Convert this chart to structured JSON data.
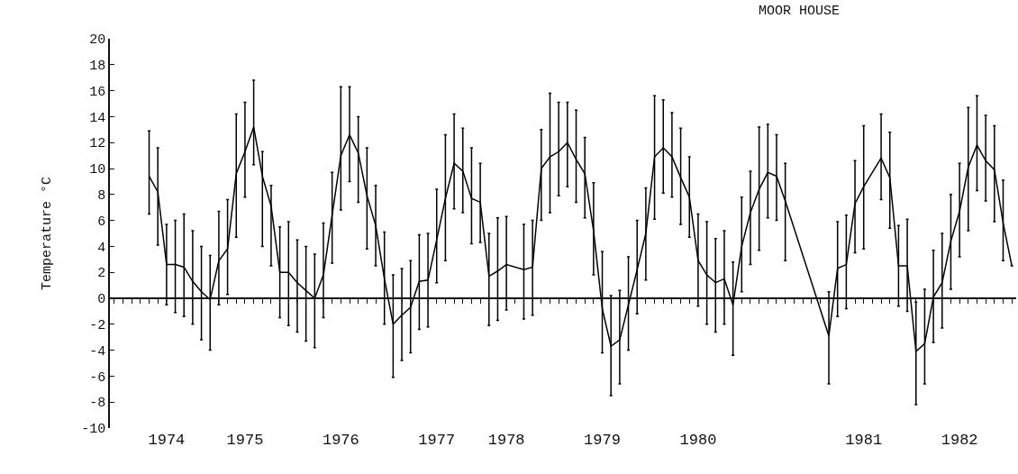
{
  "chart_data": {
    "type": "line",
    "title": "MOOR HOUSE",
    "ylabel": "Temperature °C",
    "color": "#000000",
    "line_style": "solid",
    "categories": [
      null,
      null,
      null,
      null,
      null,
      null,
      "1974",
      null,
      null,
      null,
      null,
      null,
      null,
      null,
      null,
      "1975",
      null,
      null,
      null,
      null,
      null,
      null,
      null,
      null,
      null,
      null,
      "1976",
      null,
      null,
      null,
      null,
      null,
      null,
      null,
      null,
      null,
      null,
      "1977",
      null,
      null,
      null,
      null,
      null,
      null,
      null,
      "1978",
      null,
      null,
      null,
      null,
      null,
      null,
      null,
      null,
      null,
      null,
      "1979",
      null,
      null,
      null,
      null,
      null,
      null,
      null,
      null,
      null,
      null,
      "1980",
      null,
      null,
      null,
      null,
      null,
      null,
      null,
      null,
      null,
      null,
      null,
      null,
      null,
      null,
      null,
      null,
      null,
      null,
      "1981",
      null,
      null,
      null,
      null,
      null,
      null,
      null,
      null,
      null,
      null,
      "1982",
      null,
      null,
      null,
      null,
      null,
      null
    ],
    "values": [
      null,
      null,
      null,
      null,
      9.4,
      8.2,
      2.6,
      2.6,
      2.4,
      1.3,
      0.5,
      -0.1,
      2.9,
      3.8,
      9.6,
      11.3,
      13.2,
      9.4,
      7.1,
      2.0,
      2.0,
      1.2,
      0.6,
      0.0,
      1.8,
      6.4,
      11.0,
      12.6,
      11.2,
      7.9,
      5.6,
      1.5,
      -2.0,
      -1.3,
      -0.7,
      1.3,
      1.4,
      4.5,
      7.7,
      10.4,
      9.8,
      7.7,
      7.4,
      1.7,
      2.1,
      2.6,
      null,
      2.2,
      2.4,
      10.0,
      10.9,
      11.3,
      12.0,
      10.7,
      9.6,
      5.2,
      -0.8,
      -3.7,
      -3.2,
      -0.5,
      2.2,
      5.0,
      10.9,
      11.6,
      10.9,
      9.3,
      7.8,
      2.9,
      1.8,
      1.2,
      1.5,
      -0.5,
      4.0,
      6.6,
      8.4,
      9.7,
      9.4,
      7.5,
      null,
      null,
      null,
      null,
      -2.9,
      2.3,
      2.6,
      7.3,
      8.6,
      null,
      10.8,
      9.3,
      2.5,
      2.5,
      -4.1,
      -3.5,
      0.1,
      1.2,
      4.4,
      6.7,
      10.1,
      11.8,
      10.6,
      9.9,
      5.8,
      2.5
    ],
    "errors": [
      null,
      null,
      null,
      null,
      [
        6.5,
        12.9
      ],
      [
        4.1,
        11.6
      ],
      [
        -0.5,
        5.7
      ],
      [
        -1.1,
        6.0
      ],
      [
        -1.4,
        6.5
      ],
      [
        -2.0,
        5.2
      ],
      [
        -3.2,
        4.0
      ],
      [
        -4.0,
        3.3
      ],
      [
        -0.5,
        6.7
      ],
      [
        0.3,
        7.6
      ],
      [
        4.7,
        14.2
      ],
      [
        7.8,
        15.1
      ],
      [
        10.3,
        16.8
      ],
      [
        4.0,
        11.3
      ],
      [
        2.5,
        8.7
      ],
      [
        -1.5,
        5.5
      ],
      [
        -2.1,
        5.9
      ],
      [
        -2.6,
        4.5
      ],
      [
        -3.3,
        4.0
      ],
      [
        -3.8,
        3.4
      ],
      [
        -1.5,
        5.8
      ],
      [
        2.7,
        9.7
      ],
      [
        6.8,
        16.3
      ],
      [
        9.0,
        16.3
      ],
      [
        7.4,
        14.0
      ],
      [
        3.8,
        11.6
      ],
      [
        2.5,
        8.7
      ],
      [
        -2.0,
        5.1
      ],
      [
        -6.1,
        1.8
      ],
      [
        -4.8,
        2.3
      ],
      [
        -4.2,
        2.9
      ],
      [
        -2.4,
        4.9
      ],
      [
        -2.2,
        5.0
      ],
      [
        1.2,
        8.4
      ],
      [
        2.9,
        12.6
      ],
      [
        6.9,
        14.2
      ],
      [
        6.6,
        13.1
      ],
      [
        4.2,
        11.6
      ],
      [
        4.3,
        10.4
      ],
      [
        -2.1,
        5.0
      ],
      [
        -1.7,
        6.2
      ],
      [
        -0.9,
        6.3
      ],
      null,
      [
        -1.6,
        5.7
      ],
      [
        -1.3,
        6.0
      ],
      [
        6.0,
        13.0
      ],
      [
        6.6,
        15.8
      ],
      [
        7.9,
        15.1
      ],
      [
        8.6,
        15.1
      ],
      [
        7.4,
        14.5
      ],
      [
        6.2,
        12.4
      ],
      [
        1.8,
        8.9
      ],
      [
        -4.2,
        3.6
      ],
      [
        -7.5,
        0.2
      ],
      [
        -6.6,
        0.6
      ],
      [
        -4.0,
        3.2
      ],
      [
        -1.2,
        6.0
      ],
      [
        1.4,
        8.5
      ],
      [
        6.1,
        15.6
      ],
      [
        8.1,
        15.3
      ],
      [
        7.8,
        14.3
      ],
      [
        5.7,
        13.1
      ],
      [
        4.7,
        10.9
      ],
      [
        -0.6,
        6.5
      ],
      [
        -2.0,
        5.9
      ],
      [
        -2.6,
        4.6
      ],
      [
        -2.0,
        5.2
      ],
      [
        -4.4,
        2.8
      ],
      [
        0.5,
        7.8
      ],
      [
        2.6,
        9.8
      ],
      [
        3.7,
        13.2
      ],
      [
        6.2,
        13.4
      ],
      [
        6.0,
        12.6
      ],
      [
        2.9,
        10.4
      ],
      null,
      null,
      null,
      null,
      [
        -6.6,
        0.5
      ],
      [
        -1.4,
        5.9
      ],
      [
        -0.8,
        6.4
      ],
      [
        3.5,
        10.6
      ],
      [
        3.8,
        13.3
      ],
      null,
      [
        7.6,
        14.2
      ],
      [
        5.4,
        12.8
      ],
      [
        -0.6,
        5.6
      ],
      [
        -1.0,
        6.1
      ],
      [
        -8.2,
        -0.3
      ],
      [
        -6.6,
        0.7
      ],
      [
        -3.4,
        3.7
      ],
      [
        -2.3,
        5.0
      ],
      [
        0.7,
        8.0
      ],
      [
        3.2,
        10.4
      ],
      [
        5.2,
        14.7
      ],
      [
        8.3,
        15.6
      ],
      [
        7.5,
        14.1
      ],
      [
        5.9,
        13.3
      ],
      [
        2.9,
        9.1
      ],
      null
    ],
    "ylim": [
      -10,
      20
    ],
    "yticks": [
      -10,
      -8,
      -6,
      -4,
      -2,
      0,
      2,
      4,
      6,
      8,
      10,
      12,
      14,
      16,
      18,
      20
    ]
  }
}
